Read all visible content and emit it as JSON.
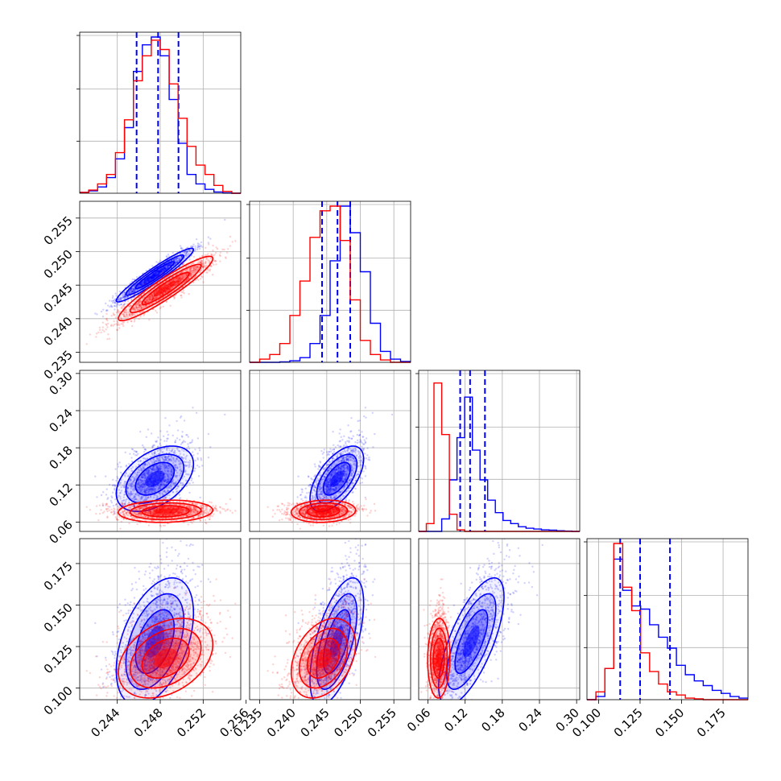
{
  "colors": {
    "series_a": "#0000ff",
    "series_b": "#ff0000",
    "grid": "#b0b0b0"
  },
  "chart_data": {
    "type": "corner",
    "grid": true,
    "parameters": [
      {
        "range": [
          0.2405,
          0.2555
        ],
        "ticks": [
          "0.244",
          "0.248",
          "0.252",
          "0.256"
        ]
      },
      {
        "range": [
          0.2335,
          0.2575
        ],
        "ticks": [
          "0.235",
          "0.240",
          "0.245",
          "0.250",
          "0.255"
        ]
      },
      {
        "range": [
          0.045,
          0.305
        ],
        "ticks": [
          "0.06",
          "0.12",
          "0.18",
          "0.24",
          "0.30"
        ]
      },
      {
        "range": [
          0.093,
          0.19
        ],
        "ticks": [
          "0.100",
          "0.125",
          "0.150",
          "0.175"
        ]
      }
    ],
    "series": [
      {
        "color": "#0000ff",
        "mean": [
          0.2475,
          0.2465,
          0.13,
          0.128
        ],
        "sd": [
          0.0018,
          0.002,
          0.022,
          0.016
        ],
        "corr": [
          [
            1,
            0.95,
            0.45,
            0.45
          ],
          [
            0.95,
            1,
            0.6,
            0.6
          ],
          [
            0.45,
            0.6,
            1,
            0.7
          ],
          [
            0.45,
            0.6,
            0.7,
            1
          ]
        ],
        "quantiles": [
          [
            0.2458,
            0.2478,
            0.2497
          ],
          [
            0.2443,
            0.2466,
            0.2485
          ],
          [
            0.112,
            0.128,
            0.152
          ],
          [
            0.113,
            0.125,
            0.143
          ]
        ],
        "hist": [
          [
            0.005,
            0.015,
            0.04,
            0.1,
            0.22,
            0.42,
            0.78,
            0.95,
            1.0,
            0.88,
            0.6,
            0.32,
            0.12,
            0.06,
            0.025,
            0.008,
            0.002,
            0.0
          ],
          [
            0.0,
            0.0,
            0.0,
            0.003,
            0.01,
            0.03,
            0.12,
            0.3,
            0.65,
            1.0,
            0.83,
            0.58,
            0.25,
            0.07,
            0.02,
            0.005
          ],
          [
            0.0,
            0.0,
            0.0,
            0.08,
            0.33,
            0.6,
            0.86,
            0.52,
            0.33,
            0.2,
            0.12,
            0.07,
            0.05,
            0.03,
            0.02,
            0.015,
            0.01,
            0.008,
            0.004,
            0.002,
            0.0
          ],
          [
            0.0,
            0.02,
            0.2,
            0.9,
            0.7,
            0.6,
            0.58,
            0.48,
            0.4,
            0.33,
            0.22,
            0.16,
            0.12,
            0.09,
            0.06,
            0.04,
            0.02,
            0.01
          ]
        ]
      },
      {
        "color": "#ff0000",
        "mean": [
          0.2485,
          0.2445,
          0.0775,
          0.118
        ],
        "sd": [
          0.0022,
          0.0024,
          0.0075,
          0.01
        ],
        "corr": [
          [
            1,
            0.93,
            0.1,
            0.35
          ],
          [
            0.93,
            1,
            0.1,
            0.35
          ],
          [
            0.1,
            0.1,
            1,
            0.05
          ],
          [
            0.35,
            0.35,
            0.05,
            1
          ]
        ],
        "quantiles": [],
        "hist": [
          [
            0.005,
            0.02,
            0.06,
            0.12,
            0.26,
            0.47,
            0.72,
            0.88,
            0.98,
            0.92,
            0.7,
            0.48,
            0.3,
            0.18,
            0.12,
            0.05,
            0.012,
            0.0
          ],
          [
            0.0,
            0.02,
            0.05,
            0.12,
            0.3,
            0.52,
            0.8,
            0.97,
            1.0,
            0.78,
            0.4,
            0.14,
            0.05,
            0.015,
            0.0,
            0.0
          ],
          [
            0.0,
            0.05,
            0.95,
            0.62,
            0.11,
            0.01,
            0.0,
            0.0,
            0.0,
            0.0,
            0.0,
            0.0,
            0.0,
            0.0,
            0.0,
            0.0,
            0.0,
            0.0,
            0.0,
            0.0,
            0.0
          ],
          [
            0.0,
            0.05,
            0.2,
            1.0,
            0.72,
            0.57,
            0.3,
            0.18,
            0.1,
            0.05,
            0.03,
            0.01,
            0.005,
            0.0,
            0.0,
            0.0,
            0.0,
            0.0
          ]
        ]
      }
    ]
  }
}
